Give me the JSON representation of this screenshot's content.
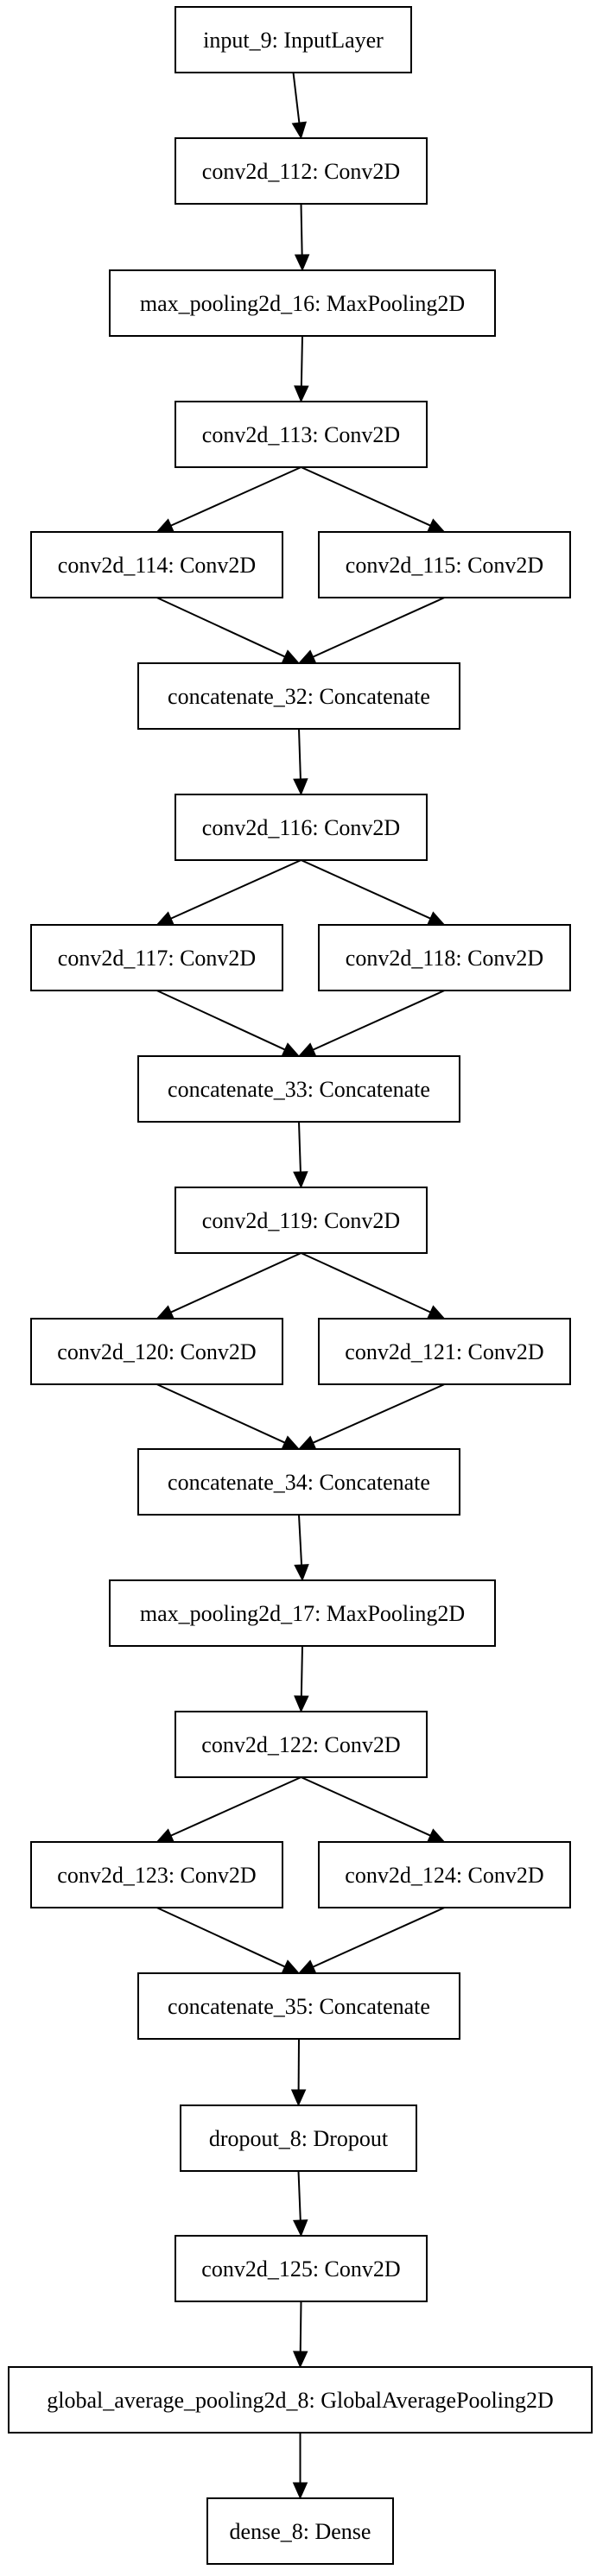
{
  "nodes": [
    {
      "id": "input_9",
      "label": "input_9: InputLayer"
    },
    {
      "id": "conv2d_112",
      "label": "conv2d_112: Conv2D"
    },
    {
      "id": "max_pooling2d_16",
      "label": "max_pooling2d_16: MaxPooling2D"
    },
    {
      "id": "conv2d_113",
      "label": "conv2d_113: Conv2D"
    },
    {
      "id": "conv2d_114",
      "label": "conv2d_114: Conv2D"
    },
    {
      "id": "conv2d_115",
      "label": "conv2d_115: Conv2D"
    },
    {
      "id": "concatenate_32",
      "label": "concatenate_32: Concatenate"
    },
    {
      "id": "conv2d_116",
      "label": "conv2d_116: Conv2D"
    },
    {
      "id": "conv2d_117",
      "label": "conv2d_117: Conv2D"
    },
    {
      "id": "conv2d_118",
      "label": "conv2d_118: Conv2D"
    },
    {
      "id": "concatenate_33",
      "label": "concatenate_33: Concatenate"
    },
    {
      "id": "conv2d_119",
      "label": "conv2d_119: Conv2D"
    },
    {
      "id": "conv2d_120",
      "label": "conv2d_120: Conv2D"
    },
    {
      "id": "conv2d_121",
      "label": "conv2d_121: Conv2D"
    },
    {
      "id": "concatenate_34",
      "label": "concatenate_34: Concatenate"
    },
    {
      "id": "max_pooling2d_17",
      "label": "max_pooling2d_17: MaxPooling2D"
    },
    {
      "id": "conv2d_122",
      "label": "conv2d_122: Conv2D"
    },
    {
      "id": "conv2d_123",
      "label": "conv2d_123: Conv2D"
    },
    {
      "id": "conv2d_124",
      "label": "conv2d_124: Conv2D"
    },
    {
      "id": "concatenate_35",
      "label": "concatenate_35: Concatenate"
    },
    {
      "id": "dropout_8",
      "label": "dropout_8: Dropout"
    },
    {
      "id": "conv2d_125",
      "label": "conv2d_125: Conv2D"
    },
    {
      "id": "global_average_pooling2d_8",
      "label": "global_average_pooling2d_8: GlobalAveragePooling2D"
    },
    {
      "id": "dense_8",
      "label": "dense_8: Dense"
    }
  ],
  "edges": [
    {
      "from": "input_9",
      "to": "conv2d_112"
    },
    {
      "from": "conv2d_112",
      "to": "max_pooling2d_16"
    },
    {
      "from": "max_pooling2d_16",
      "to": "conv2d_113"
    },
    {
      "from": "conv2d_113",
      "to": "conv2d_114"
    },
    {
      "from": "conv2d_113",
      "to": "conv2d_115"
    },
    {
      "from": "conv2d_114",
      "to": "concatenate_32"
    },
    {
      "from": "conv2d_115",
      "to": "concatenate_32"
    },
    {
      "from": "concatenate_32",
      "to": "conv2d_116"
    },
    {
      "from": "conv2d_116",
      "to": "conv2d_117"
    },
    {
      "from": "conv2d_116",
      "to": "conv2d_118"
    },
    {
      "from": "conv2d_117",
      "to": "concatenate_33"
    },
    {
      "from": "conv2d_118",
      "to": "concatenate_33"
    },
    {
      "from": "concatenate_33",
      "to": "conv2d_119"
    },
    {
      "from": "conv2d_119",
      "to": "conv2d_120"
    },
    {
      "from": "conv2d_119",
      "to": "conv2d_121"
    },
    {
      "from": "conv2d_120",
      "to": "concatenate_34"
    },
    {
      "from": "conv2d_121",
      "to": "concatenate_34"
    },
    {
      "from": "concatenate_34",
      "to": "max_pooling2d_17"
    },
    {
      "from": "max_pooling2d_17",
      "to": "conv2d_122"
    },
    {
      "from": "conv2d_122",
      "to": "conv2d_123"
    },
    {
      "from": "conv2d_122",
      "to": "conv2d_124"
    },
    {
      "from": "conv2d_123",
      "to": "concatenate_35"
    },
    {
      "from": "conv2d_124",
      "to": "concatenate_35"
    },
    {
      "from": "concatenate_35",
      "to": "dropout_8"
    },
    {
      "from": "dropout_8",
      "to": "conv2d_125"
    },
    {
      "from": "conv2d_125",
      "to": "global_average_pooling2d_8"
    },
    {
      "from": "global_average_pooling2d_8",
      "to": "dense_8"
    }
  ]
}
